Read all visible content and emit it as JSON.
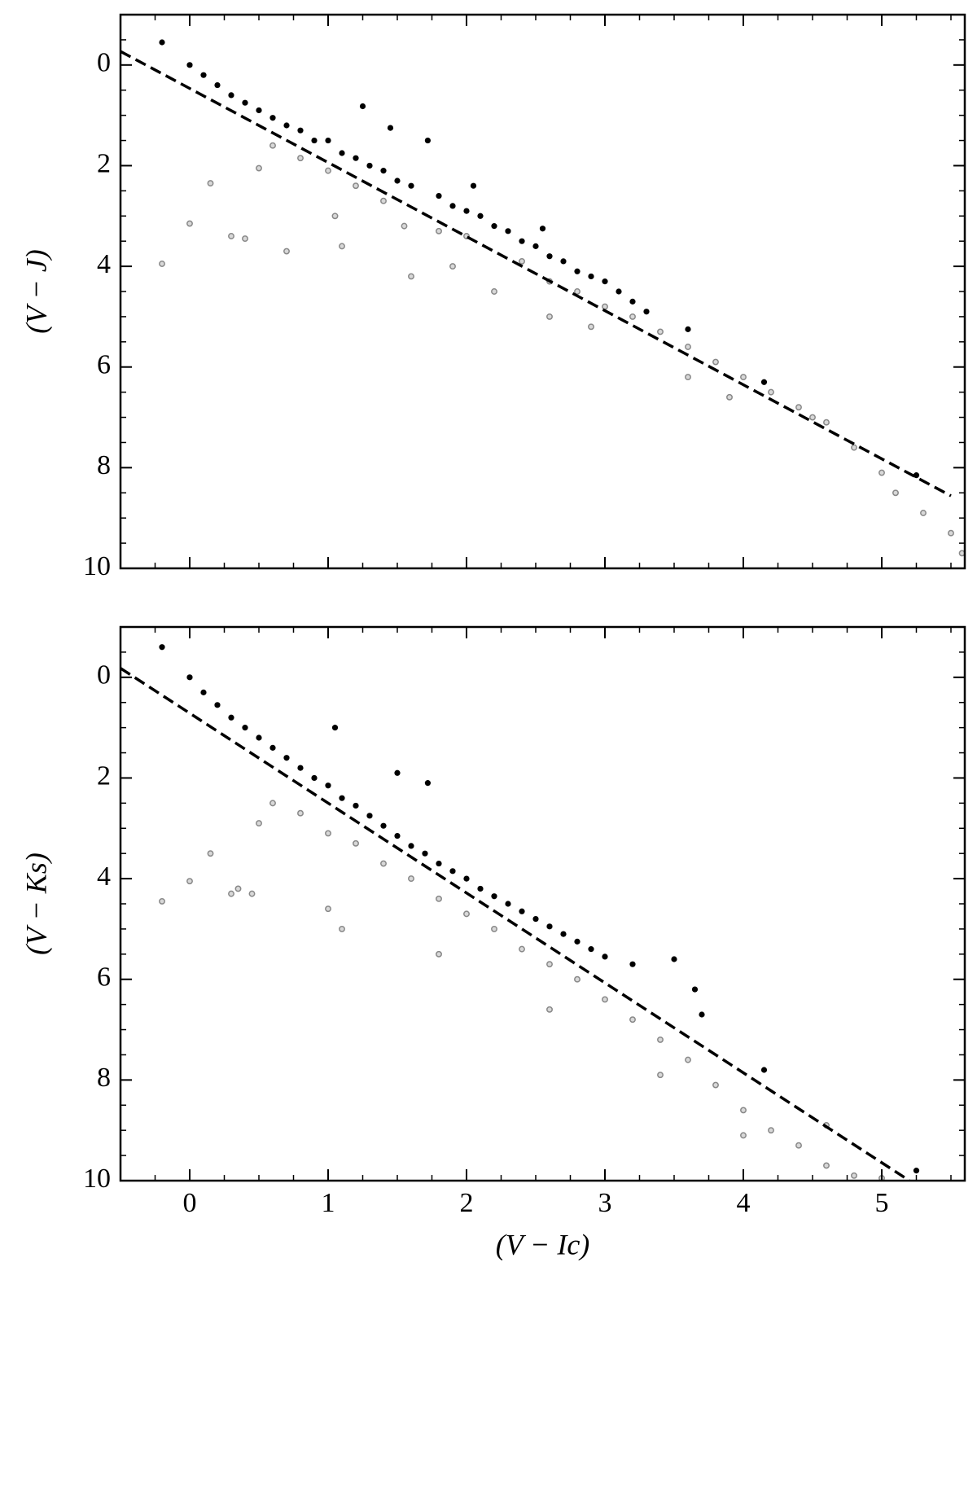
{
  "chart_data": [
    {
      "type": "scatter",
      "ylabel": "(V − J)",
      "xlim": [
        -0.5,
        5.6
      ],
      "ylim": [
        -1,
        10
      ],
      "y_inverted": true,
      "xticks": [
        0,
        1,
        2,
        3,
        4,
        5
      ],
      "yticks": [
        0,
        2,
        4,
        6,
        8,
        10
      ],
      "show_xticklabels": false,
      "minor_per_major": 4,
      "series": [
        {
          "color": "#888888",
          "marker": "open",
          "x": [
            -0.2,
            0,
            0.15,
            0.3,
            0.4,
            0.5,
            0.7,
            0.6,
            0.8,
            1.0,
            1.05,
            1.1,
            1.2,
            1.4,
            1.55,
            1.6,
            1.8,
            1.9,
            2.0,
            2.2,
            2.4,
            2.6,
            2.8,
            2.9,
            3.0,
            3.2,
            3.4,
            3.6,
            3.8,
            4.0,
            4.2,
            4.4,
            4.6,
            4.8,
            5.0,
            5.1,
            5.3,
            5.5,
            5.58,
            4.5,
            3.9,
            2.6,
            3.6
          ],
          "values": [
            3.95,
            3.15,
            2.35,
            3.4,
            3.45,
            2.05,
            3.7,
            1.6,
            1.85,
            2.1,
            3.0,
            3.6,
            2.4,
            2.7,
            3.2,
            4.2,
            3.3,
            4.0,
            3.4,
            4.5,
            3.9,
            4.3,
            4.5,
            5.2,
            4.8,
            5.0,
            5.3,
            5.6,
            5.9,
            6.2,
            6.5,
            6.8,
            7.1,
            7.6,
            8.1,
            8.5,
            8.9,
            9.3,
            9.7,
            7.0,
            6.6,
            5.0,
            6.2
          ]
        },
        {
          "color": "#000000",
          "marker": "filled",
          "x": [
            -0.2,
            0,
            0.1,
            0.2,
            0.3,
            0.4,
            0.5,
            0.6,
            0.7,
            0.8,
            0.9,
            1.0,
            1.1,
            1.2,
            1.25,
            1.3,
            1.4,
            1.5,
            1.6,
            1.72,
            1.8,
            1.9,
            2.0,
            2.1,
            2.2,
            2.3,
            2.4,
            2.5,
            2.6,
            2.7,
            2.8,
            2.9,
            3.0,
            3.1,
            3.2,
            3.3,
            3.6,
            4.15,
            5.25,
            1.45,
            2.05,
            2.55
          ],
          "values": [
            -0.45,
            0,
            0.2,
            0.4,
            0.6,
            0.75,
            0.9,
            1.05,
            1.2,
            1.3,
            1.5,
            1.5,
            1.75,
            1.85,
            0.82,
            2.0,
            2.1,
            2.3,
            2.4,
            1.5,
            2.6,
            2.8,
            2.9,
            3.0,
            3.2,
            3.3,
            3.5,
            3.6,
            3.8,
            3.9,
            4.1,
            4.2,
            4.3,
            4.5,
            4.7,
            4.9,
            5.25,
            6.3,
            8.15,
            1.25,
            2.4,
            3.25
          ]
        },
        {
          "color": "#000000",
          "marker": "dashed-line",
          "x": [
            -0.5,
            5.5
          ],
          "values": [
            -0.27,
            8.56
          ]
        }
      ]
    },
    {
      "type": "scatter",
      "ylabel": "(V − Ks)",
      "xlabel": "(V − Ic)",
      "xlim": [
        -0.5,
        5.6
      ],
      "ylim": [
        -1,
        10
      ],
      "y_inverted": true,
      "xticks": [
        0,
        1,
        2,
        3,
        4,
        5
      ],
      "yticks": [
        0,
        2,
        4,
        6,
        8,
        10
      ],
      "show_xticklabels": true,
      "minor_per_major": 4,
      "series": [
        {
          "color": "#888888",
          "marker": "open",
          "x": [
            -0.2,
            0,
            0.15,
            0.3,
            0.35,
            0.45,
            0.5,
            0.6,
            0.8,
            1.0,
            1.0,
            1.1,
            1.2,
            1.4,
            1.6,
            1.8,
            1.8,
            2.0,
            2.2,
            2.4,
            2.6,
            2.6,
            2.8,
            3.0,
            3.2,
            3.4,
            3.6,
            3.8,
            4.0,
            4.2,
            4.4,
            4.6,
            4.8,
            5.0,
            4.0,
            3.4,
            4.6
          ],
          "values": [
            4.45,
            4.05,
            3.5,
            4.3,
            4.2,
            4.3,
            2.9,
            2.5,
            2.7,
            3.1,
            4.6,
            5.0,
            3.3,
            3.7,
            4.0,
            4.4,
            5.5,
            4.7,
            5.0,
            5.4,
            5.7,
            6.6,
            6.0,
            6.4,
            6.8,
            7.2,
            7.6,
            8.1,
            8.6,
            9.0,
            9.3,
            9.7,
            9.9,
            9.95,
            9.1,
            7.9,
            8.9
          ]
        },
        {
          "color": "#000000",
          "marker": "filled",
          "x": [
            -0.2,
            0,
            0.1,
            0.2,
            0.3,
            0.4,
            0.5,
            0.6,
            0.7,
            0.8,
            0.9,
            1.0,
            1.05,
            1.1,
            1.2,
            1.3,
            1.4,
            1.5,
            1.5,
            1.72,
            1.6,
            1.7,
            1.8,
            1.9,
            2.0,
            2.1,
            2.2,
            2.3,
            2.4,
            2.5,
            2.6,
            2.7,
            2.8,
            2.9,
            3.0,
            3.2,
            3.5,
            3.65,
            3.7,
            4.15,
            5.25
          ],
          "values": [
            -0.6,
            0,
            0.3,
            0.55,
            0.8,
            1.0,
            1.2,
            1.4,
            1.6,
            1.8,
            2.0,
            2.15,
            1.0,
            2.4,
            2.55,
            2.75,
            2.95,
            3.15,
            1.9,
            2.1,
            3.35,
            3.5,
            3.7,
            3.85,
            4.0,
            4.2,
            4.35,
            4.5,
            4.65,
            4.8,
            4.95,
            5.1,
            5.25,
            5.4,
            5.55,
            5.7,
            5.6,
            6.2,
            6.7,
            7.8,
            9.8
          ]
        },
        {
          "color": "#000000",
          "marker": "dashed-line",
          "x": [
            -0.5,
            5.2
          ],
          "values": [
            -0.18,
            10
          ]
        }
      ]
    }
  ]
}
